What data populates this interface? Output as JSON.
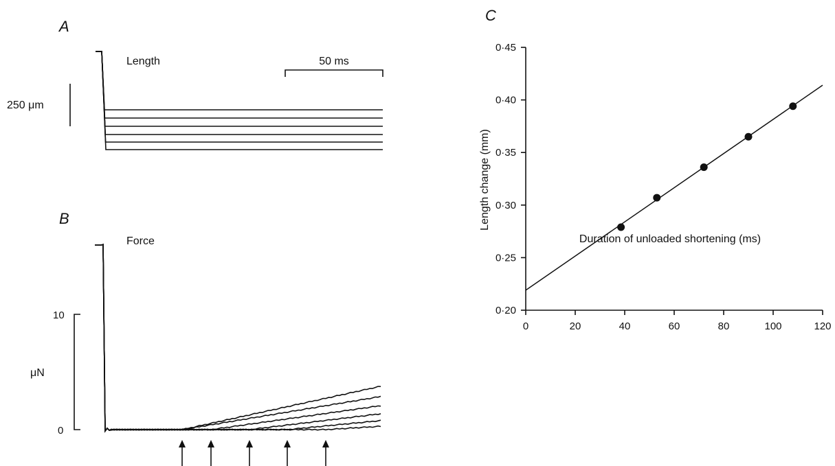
{
  "chart_data": [
    {
      "panel": "A",
      "type": "line",
      "trace_label": "Length",
      "scale_bars": {
        "vertical": "250 μm",
        "horizontal": "50 ms"
      },
      "series": [
        {
          "values": [
            0,
            5.1
          ]
        },
        {
          "values": [
            0,
            5.4
          ]
        },
        {
          "values": [
            0,
            5.7
          ]
        },
        {
          "values": [
            0,
            6.0
          ]
        },
        {
          "values": [
            0,
            6.3
          ]
        },
        {
          "values": [
            0,
            6.6
          ]
        }
      ],
      "step_levels": [
        0.865,
        0.725,
        0.63,
        0.49,
        0.39,
        0.25
      ]
    },
    {
      "panel": "B",
      "type": "line",
      "trace_label": "Force",
      "yticks": [
        "10",
        "0"
      ],
      "yunit": "μN",
      "initial_force": 16.0,
      "recovery_onsets_ms": [
        38,
        53,
        72,
        90,
        108
      ],
      "final_forces": [
        3.8,
        2.9,
        2.1,
        1.4,
        0.8,
        0.3
      ],
      "arrow_count": 5
    },
    {
      "panel": "C",
      "type": "scatter",
      "x": [
        38.5,
        53,
        72,
        90,
        108
      ],
      "y": [
        0.279,
        0.307,
        0.336,
        0.365,
        0.394
      ],
      "fit_line": {
        "x": [
          0,
          120
        ],
        "y": [
          0.219,
          0.414
        ]
      },
      "xlabel": "Duration of unloaded shortening (ms)",
      "ylabel": "Length change (mm)",
      "xlim": [
        0,
        120
      ],
      "ylim": [
        0.2,
        0.45
      ],
      "xticks": [
        "0",
        "20",
        "40",
        "60",
        "80",
        "100",
        "120"
      ],
      "yticks": [
        "0·20",
        "0·25",
        "0·30",
        "0·35",
        "0·40",
        "0·45"
      ]
    }
  ]
}
